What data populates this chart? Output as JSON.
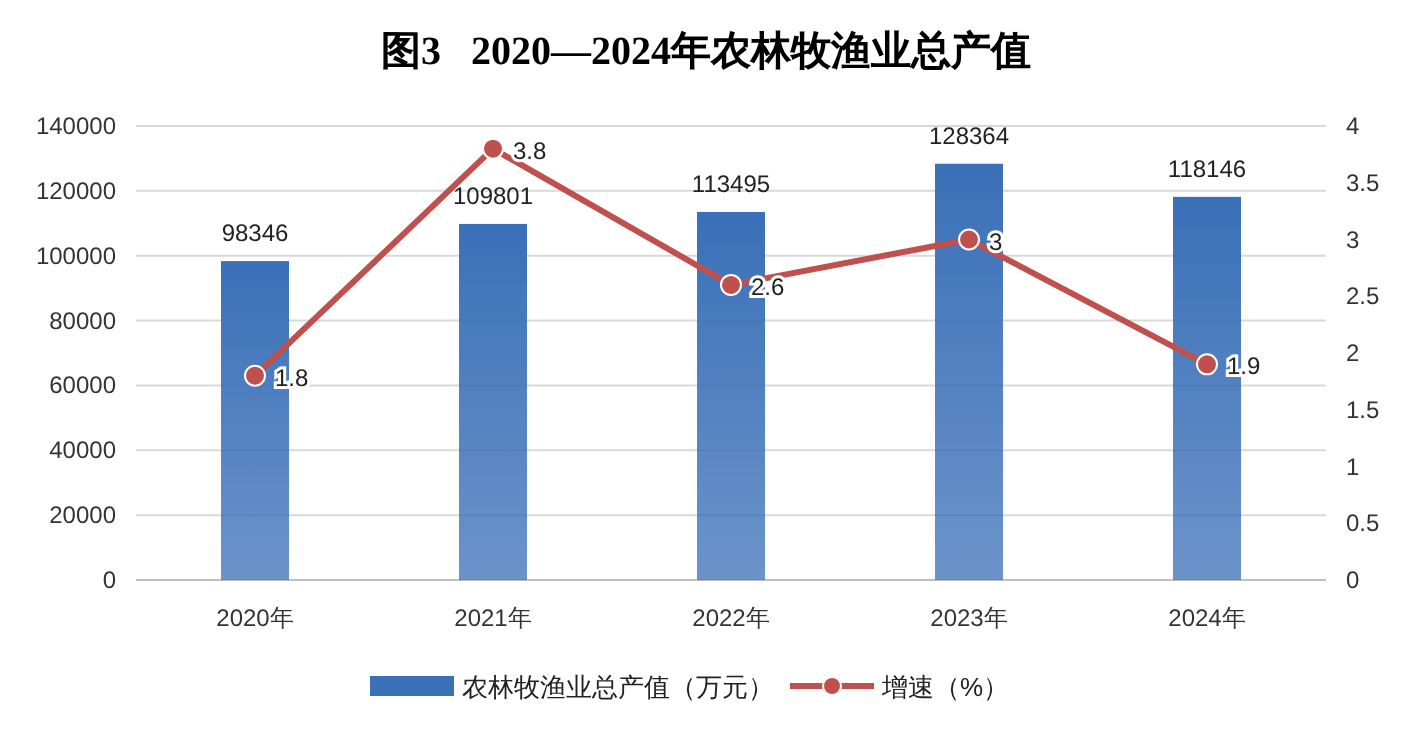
{
  "chart_data": {
    "type": "bar",
    "title": "图3   2020—2024年农林牧渔业总产值",
    "categories": [
      "2020年",
      "2021年",
      "2022年",
      "2023年",
      "2024年"
    ],
    "series": [
      {
        "name": "农林牧渔业总产值（万元）",
        "color": "#3a70b8",
        "values": [
          98346,
          109801,
          113495,
          128364,
          118146
        ]
      },
      {
        "name": "增速（%）",
        "type": "line",
        "axis": "y2",
        "color": "#c0504d",
        "values": [
          1.8,
          3.8,
          2.6,
          3,
          1.9
        ]
      }
    ],
    "ylim": [
      0,
      140000
    ],
    "yticks": [
      0,
      20000,
      40000,
      60000,
      80000,
      100000,
      120000,
      140000
    ],
    "y2lim": [
      0,
      4
    ],
    "y2ticks": [
      0,
      0.5,
      1,
      1.5,
      2,
      2.5,
      3,
      3.5,
      4
    ],
    "grid": "y",
    "legend": "bottom",
    "marker": "circle",
    "line_style": "solid",
    "data_labels": true
  }
}
